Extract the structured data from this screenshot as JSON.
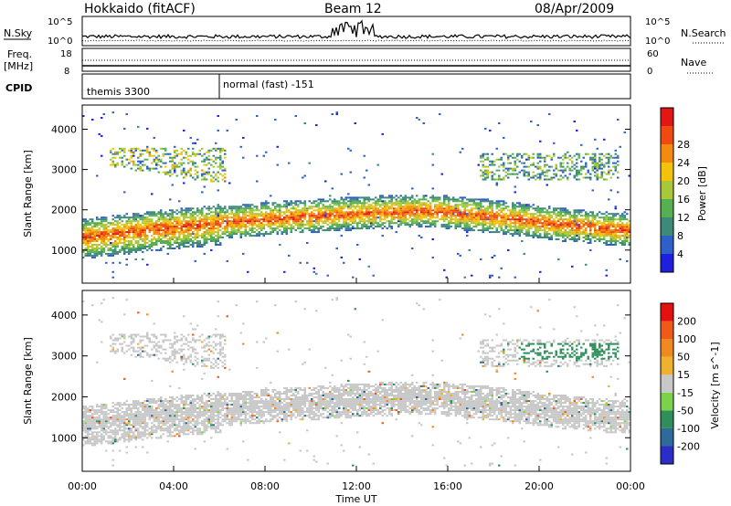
{
  "header": {
    "radar": "Hokkaido (fitACF)",
    "beam": "Beam 12",
    "date": "08/Apr/2009"
  },
  "noise_panel": {
    "left_label": "N.Sky",
    "right_label": "N.Search",
    "ticks_left": [
      "10^5",
      "10^0"
    ],
    "ticks_right": [
      "10^5",
      "10^0"
    ]
  },
  "freq_panel": {
    "left_label_1": "Freq.",
    "left_label_2": "[MHz]",
    "right_label": "Nave",
    "ticks_left": [
      "18",
      "8"
    ],
    "ticks_right": [
      "60",
      "0"
    ],
    "freq_value_mhz": 10.5,
    "nave_value": 30
  },
  "cpid_panel": {
    "label": "CPID",
    "segments": [
      {
        "name": "themis 3300",
        "start_hour": 0,
        "end_hour": 6
      },
      {
        "name": "normal (fast) -151",
        "start_hour": 6,
        "end_hour": 24
      }
    ]
  },
  "time_axis": {
    "label": "Time UT",
    "ticks": [
      "00:00",
      "04:00",
      "08:00",
      "12:00",
      "16:00",
      "20:00",
      "00:00"
    ],
    "tick_hours": [
      0,
      4,
      8,
      12,
      16,
      20,
      24
    ]
  },
  "chart_data": [
    {
      "type": "heatmap",
      "panel": "power",
      "ylabel": "Slant Range [km]",
      "xlabel": "Time UT",
      "xlim_hours": [
        0,
        24
      ],
      "ylim_km": [
        180,
        4600
      ],
      "yticks": [
        1000,
        2000,
        3000,
        4000
      ],
      "colorbar": {
        "label": "Power [dB]",
        "ticks": [
          4,
          8,
          12,
          16,
          20,
          24,
          28
        ],
        "range": [
          0,
          32
        ],
        "colors": [
          "#1f1fe0",
          "#2f5fc8",
          "#3e8a7a",
          "#57b04f",
          "#a8c83a",
          "#f2c20c",
          "#f48a0f",
          "#f04a10",
          "#e31515"
        ]
      },
      "features": [
        {
          "description": "Main scatter band",
          "start_hour": 0,
          "end_hour": 24,
          "center_km": [
            1300,
            1500,
            1650,
            1780,
            1880,
            1950,
            1800,
            1600,
            1450
          ],
          "hours": [
            0,
            3,
            6,
            9,
            12,
            15,
            18,
            21,
            24
          ],
          "peak_power_db": 30
        },
        {
          "description": "Far-range patches",
          "range_km": [
            2600,
            3500
          ],
          "hours": [
            1,
            6.2
          ],
          "peak_power_db": 22
        },
        {
          "description": "Evening far-range patches",
          "range_km": [
            2700,
            3400
          ],
          "hours": [
            17.3,
            23.5
          ],
          "peak_power_db": 20
        }
      ]
    },
    {
      "type": "heatmap",
      "panel": "velocity",
      "ylabel": "Slant Range [km]",
      "xlabel": "Time UT",
      "xlim_hours": [
        0,
        24
      ],
      "ylim_km": [
        180,
        4600
      ],
      "yticks": [
        1000,
        2000,
        3000,
        4000
      ],
      "colorbar": {
        "label": "Velocity [m s^-1]",
        "ticks": [
          "200",
          "100",
          "50",
          "15",
          "-15",
          "-50",
          "-100",
          "-200"
        ],
        "range": [
          -250,
          250
        ],
        "colors": [
          "#2c2cc8",
          "#2e6a9a",
          "#2f8f5a",
          "#7cd34a",
          "#c8c8c8",
          "#f0b030",
          "#f08a20",
          "#f05a18",
          "#e51010"
        ]
      }
    }
  ]
}
